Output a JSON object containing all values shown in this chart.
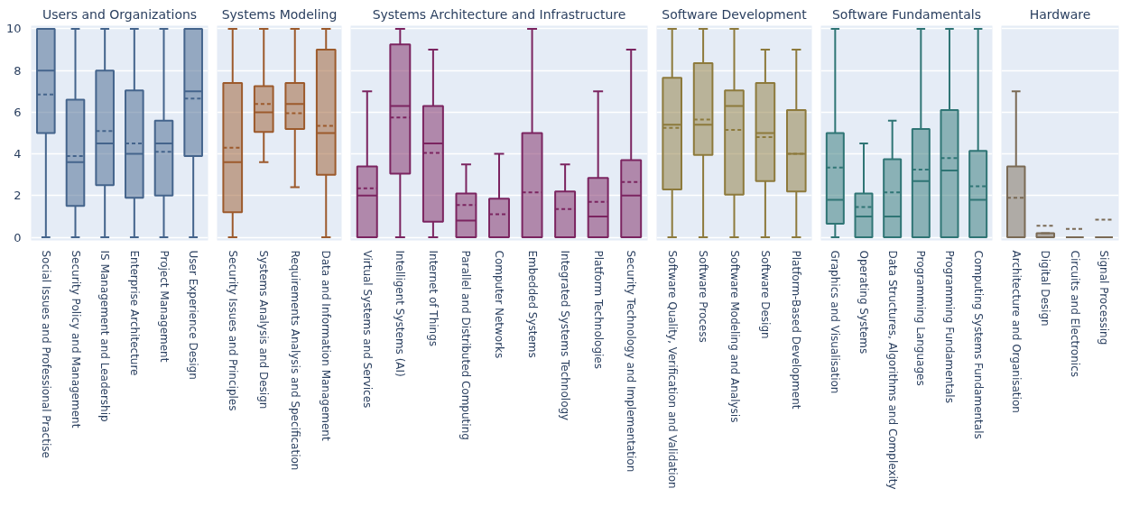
{
  "chart_data": [
    {
      "type": "box",
      "title": "Users and Organizations",
      "color": "#44648c",
      "ylim": [
        0,
        10
      ],
      "yticks": [
        0,
        2,
        4,
        6,
        8,
        10
      ],
      "grid": "y",
      "categories": [
        "Social Issues and Professional Practise",
        "Security Policy and Management",
        "IS Management and Leadership",
        "Enterprise Architecture",
        "Project Management",
        "User Experience Design"
      ],
      "boxes": [
        {
          "low": 0,
          "q1": 5,
          "median": 8,
          "q3": 10,
          "high": 10,
          "mean": 6.85
        },
        {
          "low": 0,
          "q1": 1.5,
          "median": 3.6,
          "q3": 6.6,
          "high": 10,
          "mean": 3.9
        },
        {
          "low": 0,
          "q1": 2.5,
          "median": 4.5,
          "q3": 8,
          "high": 10,
          "mean": 5.1
        },
        {
          "low": 0,
          "q1": 1.9,
          "median": 4,
          "q3": 7.05,
          "high": 10,
          "mean": 4.5
        },
        {
          "low": 0,
          "q1": 2,
          "median": 4.5,
          "q3": 5.6,
          "high": 10,
          "mean": 4.1
        },
        {
          "low": 0,
          "q1": 3.9,
          "median": 7,
          "q3": 10,
          "high": 10,
          "mean": 6.65
        }
      ]
    },
    {
      "type": "box",
      "title": "Systems Modeling",
      "color": "#9c5a2c",
      "ylim": [
        0,
        10
      ],
      "yticks": [
        0,
        2,
        4,
        6,
        8,
        10
      ],
      "grid": "y",
      "tick_labels": "x",
      "categories": [
        "Security Issues and Principles",
        "Systems Analysis and Design",
        "Requirements Analysis and Specification",
        "Data and Information Management"
      ],
      "boxes": [
        {
          "low": 0,
          "q1": 1.2,
          "median": 3.6,
          "q3": 7.4,
          "high": 10,
          "mean": 4.3
        },
        {
          "low": 3.6,
          "q1": 5.05,
          "median": 6,
          "q3": 7.25,
          "high": 10,
          "mean": 6.4
        },
        {
          "low": 2.4,
          "q1": 5.2,
          "median": 6.4,
          "q3": 7.4,
          "high": 10,
          "mean": 5.95
        },
        {
          "low": 0,
          "q1": 3,
          "median": 5,
          "q3": 9,
          "high": 10,
          "mean": 5.35
        }
      ]
    },
    {
      "type": "box",
      "title": "Systems Architecture and Infrastructure",
      "color": "#7b2460",
      "ylim": [
        0,
        10
      ],
      "yticks": [
        0,
        2,
        4,
        6,
        8,
        10
      ],
      "grid": "y",
      "tick_labels": "x",
      "categories": [
        "Virtual Systems and Services",
        "Intelligent Systems (AI)",
        "Internet of Things",
        "Parallel and Distributed Computing",
        "Computer Networks",
        "Embedded Systems",
        "Integrated Systems Technology",
        "Platform Technologies",
        "Security Technology and Implementation"
      ],
      "boxes": [
        {
          "low": 0,
          "q1": 0,
          "median": 2,
          "q3": 3.4,
          "high": 7,
          "mean": 2.35
        },
        {
          "low": 0,
          "q1": 3.05,
          "median": 6.3,
          "q3": 9.25,
          "high": 10,
          "mean": 5.75
        },
        {
          "low": 0,
          "q1": 0.75,
          "median": 4.5,
          "q3": 6.3,
          "high": 9,
          "mean": 4.05
        },
        {
          "low": 0,
          "q1": 0,
          "median": 0.8,
          "q3": 2.1,
          "high": 3.5,
          "mean": 1.55
        },
        {
          "low": 0,
          "q1": 0,
          "median": 0,
          "q3": 1.85,
          "high": 4,
          "mean": 1.1
        },
        {
          "low": 0,
          "q1": 0,
          "median": 0,
          "q3": 5,
          "high": 10,
          "mean": 2.15
        },
        {
          "low": 0,
          "q1": 0,
          "median": 0,
          "q3": 2.2,
          "high": 3.5,
          "mean": 1.35
        },
        {
          "low": 0,
          "q1": 0,
          "median": 1,
          "q3": 2.85,
          "high": 7,
          "mean": 1.7
        },
        {
          "low": 0,
          "q1": 0,
          "median": 2,
          "q3": 3.7,
          "high": 9,
          "mean": 2.65
        }
      ]
    },
    {
      "type": "box",
      "title": "Software Development",
      "color": "#8d7a3c",
      "ylim": [
        0,
        10
      ],
      "yticks": [
        0,
        2,
        4,
        6,
        8,
        10
      ],
      "grid": "y",
      "tick_labels": "x",
      "categories": [
        "Software Quality, Verification and Validation",
        "Software Process",
        "Software Modeling and Analysis",
        "Software Design",
        "Platform-Based Development"
      ],
      "boxes": [
        {
          "low": 0,
          "q1": 2.3,
          "median": 5.4,
          "q3": 7.65,
          "high": 10,
          "mean": 5.25
        },
        {
          "low": 0,
          "q1": 3.95,
          "median": 5.4,
          "q3": 8.35,
          "high": 10,
          "mean": 5.65
        },
        {
          "low": 0,
          "q1": 2.05,
          "median": 6.3,
          "q3": 7.05,
          "high": 10,
          "mean": 5.15
        },
        {
          "low": 0,
          "q1": 2.7,
          "median": 5,
          "q3": 7.4,
          "high": 9,
          "mean": 4.8
        },
        {
          "low": 0,
          "q1": 2.2,
          "median": 4,
          "q3": 6.1,
          "high": 9,
          "mean": 4
        }
      ]
    },
    {
      "type": "box",
      "title": "Software Fundamentals",
      "color": "#2f7575",
      "ylim": [
        0,
        10
      ],
      "yticks": [
        0,
        2,
        4,
        6,
        8,
        10
      ],
      "grid": "y",
      "tick_labels": "x",
      "categories": [
        "Graphics and Visualisation",
        "Operating Systems",
        "Data Structures, Algorithms and Complexity",
        "Programming Languages",
        "Programming Fundamentals",
        "Computing Systems Fundamentals"
      ],
      "boxes": [
        {
          "low": 0,
          "q1": 0.65,
          "median": 1.8,
          "q3": 5,
          "high": 10,
          "mean": 3.35
        },
        {
          "low": 0,
          "q1": 0,
          "median": 1,
          "q3": 2.1,
          "high": 4.5,
          "mean": 1.45
        },
        {
          "low": 0,
          "q1": 0,
          "median": 1,
          "q3": 3.75,
          "high": 5.6,
          "mean": 2.15
        },
        {
          "low": 0,
          "q1": 0,
          "median": 2.7,
          "q3": 5.2,
          "high": 10,
          "mean": 3.25
        },
        {
          "low": 0,
          "q1": 0,
          "median": 3.2,
          "q3": 6.1,
          "high": 10,
          "mean": 3.8
        },
        {
          "low": 0,
          "q1": 0,
          "median": 1.8,
          "q3": 4.15,
          "high": 10,
          "mean": 2.45
        }
      ]
    },
    {
      "type": "box",
      "title": "Hardware",
      "color": "#7a6a55",
      "ylim": [
        0,
        10
      ],
      "yticks": [
        0,
        2,
        4,
        6,
        8,
        10
      ],
      "grid": "y",
      "tick_labels": "x",
      "categories": [
        "Architecture and Organisation",
        "Digital Design",
        "Circuits and Electronics",
        "Signal Processing"
      ],
      "boxes": [
        {
          "low": 0,
          "q1": 0,
          "median": 0,
          "q3": 3.4,
          "high": 7,
          "mean": 1.9
        },
        {
          "low": 0,
          "q1": 0,
          "median": 0,
          "q3": 0.2,
          "high": 0.2,
          "mean": 0.55
        },
        {
          "low": 0,
          "q1": 0,
          "median": 0,
          "q3": 0,
          "high": 0,
          "mean": 0.4
        },
        {
          "low": 0,
          "q1": 0,
          "median": 0,
          "q3": 0,
          "high": 0,
          "mean": 0.85
        }
      ]
    }
  ]
}
